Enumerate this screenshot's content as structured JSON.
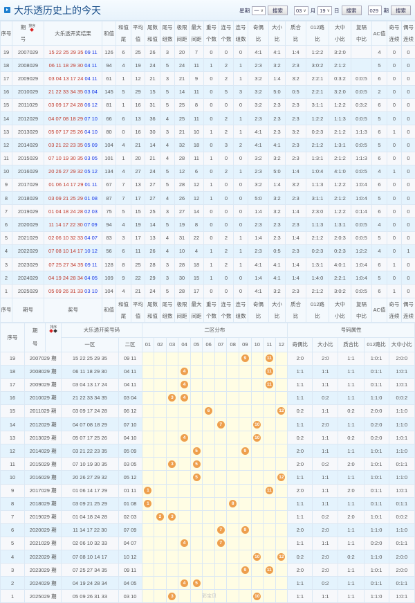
{
  "header": {
    "title": "大乐透历史上的今天",
    "weekday_label": "星期",
    "weekday_value": "一",
    "search_label": "搜索",
    "month_value": "03",
    "month_label": "月",
    "day_value": "19",
    "day_label": "日",
    "issue_value": "029",
    "issue_label": "期"
  },
  "colors": {
    "front": "#c0392b",
    "back": "#1637e8",
    "ball": "#ee9f4d",
    "zone_bg": "#fffde4",
    "row_alt": "#e4f3fd"
  },
  "sort_label": "排序",
  "top_table": {
    "columns": [
      [
        "序号"
      ],
      [
        "期",
        "号"
      ],
      [
        "大乐透开奖结果"
      ],
      [
        "和值"
      ],
      [
        "和值",
        "尾"
      ],
      [
        "平均",
        "值"
      ],
      [
        "尾数",
        "和值"
      ],
      [
        "尾号",
        "组数"
      ],
      [
        "极限",
        "间距"
      ],
      [
        "最大",
        "间距"
      ],
      [
        "重号",
        "个数"
      ],
      [
        "连号",
        "个数"
      ],
      [
        "连号",
        "组数"
      ],
      [
        "奇偶",
        "比"
      ],
      [
        "大小",
        "比"
      ],
      [
        "质合",
        "比"
      ],
      [
        "012路",
        "比"
      ],
      [
        "大中",
        "小比"
      ],
      [
        "复隔",
        "中比"
      ],
      [
        "AC值"
      ],
      [
        "奇号",
        "连续"
      ],
      [
        "偶号",
        "连续"
      ]
    ],
    "footer_columns": [
      [
        "序号"
      ],
      [
        "期号"
      ],
      [
        "奖号"
      ],
      [
        "和值"
      ],
      [
        "和值",
        "尾"
      ],
      [
        "平均",
        "值"
      ],
      [
        "尾数",
        "和值"
      ],
      [
        "尾号",
        "组数"
      ],
      [
        "极限",
        "间距"
      ],
      [
        "最大",
        "间距"
      ],
      [
        "重号",
        "个数"
      ],
      [
        "连号",
        "个数"
      ],
      [
        "连号",
        "组数"
      ],
      [
        "奇偶",
        "比"
      ],
      [
        "大小",
        "比"
      ],
      [
        "质合",
        "比"
      ],
      [
        "012路",
        "比"
      ],
      [
        "大中",
        "小比"
      ],
      [
        "复隔",
        "中比"
      ],
      [
        "AC值"
      ],
      [
        "奇号",
        "连续"
      ],
      [
        "偶号",
        "连续"
      ]
    ],
    "rows": [
      {
        "seq": "19",
        "issue": "2007029",
        "front": "15 22 25 29 35",
        "back": "09 11",
        "stats": [
          "126",
          "6",
          "25",
          "26",
          "3",
          "20",
          "7",
          "0",
          "0",
          "0",
          "4:1",
          "4:1",
          "1:4",
          "1:2:2",
          "3:2:0",
          "",
          "4",
          "0",
          "0"
        ]
      },
      {
        "seq": "18",
        "issue": "2008029",
        "front": "06 11 18 29 30",
        "back": "04 11",
        "stats": [
          "94",
          "4",
          "19",
          "24",
          "5",
          "24",
          "11",
          "1",
          "2",
          "1",
          "2:3",
          "3:2",
          "2:3",
          "3:0:2",
          "2:1:2",
          "",
          "5",
          "0",
          "0"
        ]
      },
      {
        "seq": "17",
        "issue": "2009029",
        "front": "03 04 13 17 24",
        "back": "04 11",
        "stats": [
          "61",
          "1",
          "12",
          "21",
          "3",
          "21",
          "9",
          "0",
          "2",
          "1",
          "3:2",
          "1:4",
          "3:2",
          "2:2:1",
          "0:3:2",
          "0:0:5",
          "6",
          "0",
          "0"
        ]
      },
      {
        "seq": "16",
        "issue": "2010029",
        "front": "21 22 33 34 35",
        "back": "03 04",
        "stats": [
          "145",
          "5",
          "29",
          "15",
          "5",
          "14",
          "11",
          "0",
          "5",
          "3",
          "3:2",
          "5:0",
          "0:5",
          "2:2:1",
          "3:2:0",
          "0:0:5",
          "2",
          "0",
          "0"
        ]
      },
      {
        "seq": "15",
        "issue": "2011029",
        "front": "03 09 17 24 28",
        "back": "06 12",
        "stats": [
          "81",
          "1",
          "16",
          "31",
          "5",
          "25",
          "8",
          "0",
          "0",
          "0",
          "3:2",
          "2:3",
          "2:3",
          "3:1:1",
          "1:2:2",
          "0:3:2",
          "6",
          "0",
          "0"
        ]
      },
      {
        "seq": "14",
        "issue": "2012029",
        "front": "04 07 08 18 29",
        "back": "07 10",
        "stats": [
          "66",
          "6",
          "13",
          "36",
          "4",
          "25",
          "11",
          "0",
          "2",
          "1",
          "2:3",
          "2:3",
          "2:3",
          "1:2:2",
          "1:1:3",
          "0:0:5",
          "5",
          "0",
          "0"
        ]
      },
      {
        "seq": "13",
        "issue": "2013029",
        "front": "05 07 17 25 26",
        "back": "04 10",
        "stats": [
          "80",
          "0",
          "16",
          "30",
          "3",
          "21",
          "10",
          "1",
          "2",
          "1",
          "4:1",
          "2:3",
          "3:2",
          "0:2:3",
          "2:1:2",
          "1:1:3",
          "6",
          "1",
          "0"
        ]
      },
      {
        "seq": "12",
        "issue": "2014029",
        "front": "03 21 22 23 35",
        "back": "05 09",
        "stats": [
          "104",
          "4",
          "21",
          "14",
          "4",
          "32",
          "18",
          "0",
          "3",
          "2",
          "4:1",
          "4:1",
          "2:3",
          "2:1:2",
          "1:3:1",
          "0:0:5",
          "5",
          "0",
          "0"
        ]
      },
      {
        "seq": "11",
        "issue": "2015029",
        "front": "07 10 19 30 35",
        "back": "03 05",
        "stats": [
          "101",
          "1",
          "20",
          "21",
          "4",
          "28",
          "11",
          "1",
          "0",
          "0",
          "3:2",
          "3:2",
          "2:3",
          "1:3:1",
          "2:1:2",
          "1:1:3",
          "6",
          "0",
          "0"
        ]
      },
      {
        "seq": "10",
        "issue": "2016029",
        "front": "20 26 27 29 32",
        "back": "05 12",
        "stats": [
          "134",
          "4",
          "27",
          "24",
          "5",
          "12",
          "6",
          "0",
          "2",
          "1",
          "2:3",
          "5:0",
          "1:4",
          "1:0:4",
          "4:1:0",
          "0:0:5",
          "4",
          "1",
          "0"
        ]
      },
      {
        "seq": "9",
        "issue": "2017029",
        "front": "01 06 14 17 29",
        "back": "01 11",
        "stats": [
          "67",
          "7",
          "13",
          "27",
          "5",
          "28",
          "12",
          "1",
          "0",
          "0",
          "3:2",
          "1:4",
          "3:2",
          "1:1:3",
          "1:2:2",
          "1:0:4",
          "6",
          "0",
          "0"
        ]
      },
      {
        "seq": "8",
        "issue": "2018029",
        "front": "03 09 21 25 29",
        "back": "01 08",
        "stats": [
          "87",
          "7",
          "17",
          "27",
          "4",
          "26",
          "12",
          "1",
          "0",
          "0",
          "5:0",
          "3:2",
          "2:3",
          "3:1:1",
          "2:1:2",
          "1:0:4",
          "5",
          "0",
          "0"
        ]
      },
      {
        "seq": "7",
        "issue": "2019029",
        "front": "01 04 18 24 28",
        "back": "02 03",
        "stats": [
          "75",
          "5",
          "15",
          "25",
          "3",
          "27",
          "14",
          "0",
          "0",
          "0",
          "1:4",
          "3:2",
          "1:4",
          "2:3:0",
          "1:2:2",
          "0:1:4",
          "6",
          "0",
          "0"
        ]
      },
      {
        "seq": "6",
        "issue": "2020029",
        "front": "11 14 17 22 30",
        "back": "07 09",
        "stats": [
          "94",
          "4",
          "19",
          "14",
          "5",
          "19",
          "8",
          "0",
          "0",
          "0",
          "2:3",
          "2:3",
          "2:3",
          "1:1:3",
          "1:3:1",
          "0:0:5",
          "4",
          "0",
          "0"
        ]
      },
      {
        "seq": "5",
        "issue": "2021029",
        "front": "02 06 10 32 33",
        "back": "04 07",
        "stats": [
          "83",
          "3",
          "17",
          "13",
          "4",
          "31",
          "22",
          "0",
          "2",
          "1",
          "1:4",
          "2:3",
          "1:4",
          "2:1:2",
          "2:0:3",
          "0:0:5",
          "5",
          "0",
          "0"
        ]
      },
      {
        "seq": "4",
        "issue": "2022029",
        "front": "07 08 10 14 17",
        "back": "10 12",
        "stats": [
          "56",
          "6",
          "11",
          "26",
          "4",
          "10",
          "4",
          "1",
          "2",
          "1",
          "2:3",
          "0:5",
          "2:3",
          "0:2:3",
          "0:2:3",
          "1:2:2",
          "4",
          "0",
          "1"
        ]
      },
      {
        "seq": "3",
        "issue": "2023029",
        "front": "07 25 27 34 35",
        "back": "09 11",
        "stats": [
          "128",
          "8",
          "25",
          "28",
          "3",
          "28",
          "18",
          "1",
          "2",
          "1",
          "4:1",
          "4:1",
          "1:4",
          "1:3:1",
          "4:0:1",
          "1:0:4",
          "6",
          "1",
          "0"
        ]
      },
      {
        "seq": "2",
        "issue": "2024029",
        "front": "04 19 24 28 34",
        "back": "04 05",
        "stats": [
          "109",
          "9",
          "22",
          "29",
          "3",
          "30",
          "15",
          "1",
          "0",
          "0",
          "1:4",
          "4:1",
          "1:4",
          "1:4:0",
          "2:2:1",
          "1:0:4",
          "5",
          "0",
          "0"
        ]
      },
      {
        "seq": "1",
        "issue": "2025029",
        "front": "05 09 26 31 33",
        "back": "03 10",
        "stats": [
          "104",
          "4",
          "21",
          "24",
          "5",
          "28",
          "17",
          "0",
          "0",
          "0",
          "4:1",
          "3:2",
          "2:3",
          "2:1:2",
          "3:0:2",
          "0:0:5",
          "6",
          "1",
          "0"
        ]
      }
    ]
  },
  "dist_table": {
    "h_seq": "序号",
    "h_issue": [
      "期",
      "号"
    ],
    "h_numbers": "大乐透开奖号码",
    "h_zone1": "一区",
    "h_zone2": "二区",
    "h_dist": "二区分布",
    "h_attr": "号码属性",
    "dist_cols": [
      "01",
      "02",
      "03",
      "04",
      "05",
      "06",
      "07",
      "08",
      "09",
      "10",
      "11",
      "12"
    ],
    "attr_cols": [
      "奇偶比",
      "大小比",
      "质合比",
      "012路比",
      "大中小比"
    ],
    "issue_suffix": "期",
    "rows": [
      {
        "seq": "19",
        "issue": "2007029",
        "z1": "15 22 25 29 35",
        "z2": "09 11",
        "attr": [
          "2:0",
          "2:0",
          "1:1",
          "1:0:1",
          "2:0:0"
        ]
      },
      {
        "seq": "18",
        "issue": "2008029",
        "z1": "06 11 18 29 30",
        "z2": "04 11",
        "attr": [
          "1:1",
          "1:1",
          "1:1",
          "0:1:1",
          "1:0:1"
        ]
      },
      {
        "seq": "17",
        "issue": "2009029",
        "z1": "03 04 13 17 24",
        "z2": "04 11",
        "attr": [
          "1:1",
          "1:1",
          "1:1",
          "0:1:1",
          "1:0:1"
        ]
      },
      {
        "seq": "16",
        "issue": "2010029",
        "z1": "21 22 33 34 35",
        "z2": "03 04",
        "attr": [
          "1:1",
          "0:2",
          "1:1",
          "1:1:0",
          "0:0:2"
        ]
      },
      {
        "seq": "15",
        "issue": "2011029",
        "z1": "03 09 17 24 28",
        "z2": "06 12",
        "attr": [
          "0:2",
          "1:1",
          "0:2",
          "2:0:0",
          "1:1:0"
        ]
      },
      {
        "seq": "14",
        "issue": "2012029",
        "z1": "04 07 08 18 29",
        "z2": "07 10",
        "attr": [
          "1:1",
          "2:0",
          "1:1",
          "0:2:0",
          "1:1:0"
        ]
      },
      {
        "seq": "13",
        "issue": "2013029",
        "z1": "05 07 17 25 26",
        "z2": "04 10",
        "attr": [
          "0:2",
          "1:1",
          "0:2",
          "0:2:0",
          "1:0:1"
        ]
      },
      {
        "seq": "12",
        "issue": "2014029",
        "z1": "03 21 22 23 35",
        "z2": "05 09",
        "attr": [
          "2:0",
          "1:1",
          "1:1",
          "1:0:1",
          "1:1:0"
        ]
      },
      {
        "seq": "11",
        "issue": "2015029",
        "z1": "07 10 19 30 35",
        "z2": "03 05",
        "attr": [
          "2:0",
          "0:2",
          "2:0",
          "1:0:1",
          "0:1:1"
        ]
      },
      {
        "seq": "10",
        "issue": "2016029",
        "z1": "20 26 27 29 32",
        "z2": "05 12",
        "attr": [
          "1:1",
          "1:1",
          "1:1",
          "1:0:1",
          "1:1:0"
        ]
      },
      {
        "seq": "9",
        "issue": "2017029",
        "z1": "01 06 14 17 29",
        "z2": "01 11",
        "attr": [
          "2:0",
          "1:1",
          "2:0",
          "0:1:1",
          "1:0:1"
        ]
      },
      {
        "seq": "8",
        "issue": "2018029",
        "z1": "03 09 21 25 29",
        "z2": "01 08",
        "attr": [
          "1:1",
          "1:1",
          "1:1",
          "0:1:1",
          "0:1:1"
        ]
      },
      {
        "seq": "7",
        "issue": "2019029",
        "z1": "01 04 18 24 28",
        "z2": "02 03",
        "attr": [
          "1:1",
          "0:2",
          "2:0",
          "1:0:1",
          "0:0:2"
        ]
      },
      {
        "seq": "6",
        "issue": "2020029",
        "z1": "11 14 17 22 30",
        "z2": "07 09",
        "attr": [
          "2:0",
          "2:0",
          "1:1",
          "1:1:0",
          "1:1:0"
        ]
      },
      {
        "seq": "5",
        "issue": "2021029",
        "z1": "02 06 10 32 33",
        "z2": "04 07",
        "attr": [
          "1:1",
          "1:1",
          "1:1",
          "0:2:0",
          "0:1:1"
        ]
      },
      {
        "seq": "4",
        "issue": "2022029",
        "z1": "07 08 10 14 17",
        "z2": "10 12",
        "attr": [
          "0:2",
          "2:0",
          "0:2",
          "1:1:0",
          "2:0:0"
        ]
      },
      {
        "seq": "3",
        "issue": "2023029",
        "z1": "07 25 27 34 35",
        "z2": "09 11",
        "attr": [
          "2:0",
          "2:0",
          "1:1",
          "1:0:1",
          "2:0:0"
        ]
      },
      {
        "seq": "2",
        "issue": "2024029",
        "z1": "04 19 24 28 34",
        "z2": "04 05",
        "attr": [
          "1:1",
          "0:2",
          "1:1",
          "0:1:1",
          "0:1:1"
        ]
      },
      {
        "seq": "1",
        "issue": "2025029",
        "z1": "05 09 26 31 33",
        "z2": "03 10",
        "attr": [
          "1:1",
          "1:1",
          "1:1",
          "1:1:0",
          "1:0:1"
        ]
      }
    ]
  }
}
